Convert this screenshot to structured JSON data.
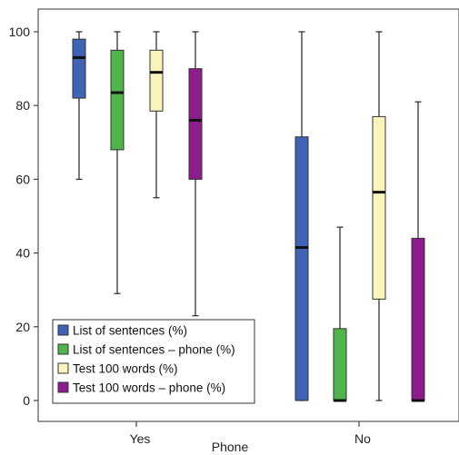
{
  "chart_data": {
    "type": "boxplot",
    "xlabel": "Phone",
    "ylabel": "",
    "ylim": [
      0,
      100
    ],
    "yticks": [
      0,
      20,
      40,
      60,
      80,
      100
    ],
    "grid": false,
    "legend_position": "bottom-left",
    "categories": [
      "Yes",
      "No"
    ],
    "series": [
      {
        "name": "List of sentences (%)",
        "color": "#3f63b6",
        "boxes": [
          {
            "category": "Yes",
            "min": 60,
            "q1": 82,
            "median": 93,
            "q3": 98,
            "max": 100
          },
          {
            "category": "No",
            "min": 0,
            "q1": 0,
            "median": 41.5,
            "q3": 71.5,
            "max": 100
          }
        ]
      },
      {
        "name": "List of sentences – phone (%)",
        "color": "#4fb54a",
        "boxes": [
          {
            "category": "Yes",
            "min": 29,
            "q1": 68,
            "median": 83.5,
            "q3": 95,
            "max": 100
          },
          {
            "category": "No",
            "min": 0,
            "q1": 0,
            "median": 0,
            "q3": 19.5,
            "max": 47
          }
        ]
      },
      {
        "name": "Test 100 words (%)",
        "color": "#fbf5bd",
        "boxes": [
          {
            "category": "Yes",
            "min": 55,
            "q1": 78.5,
            "median": 89,
            "q3": 95,
            "max": 100
          },
          {
            "category": "No",
            "min": 0,
            "q1": 27.5,
            "median": 56.5,
            "q3": 77,
            "max": 100
          }
        ]
      },
      {
        "name": "Test 100 words – phone (%)",
        "color": "#8e1c8e",
        "boxes": [
          {
            "category": "Yes",
            "min": 23,
            "q1": 60,
            "median": 76,
            "q3": 90,
            "max": 100
          },
          {
            "category": "No",
            "min": 0,
            "q1": 0,
            "median": 0,
            "q3": 44,
            "max": 81
          }
        ]
      }
    ]
  }
}
